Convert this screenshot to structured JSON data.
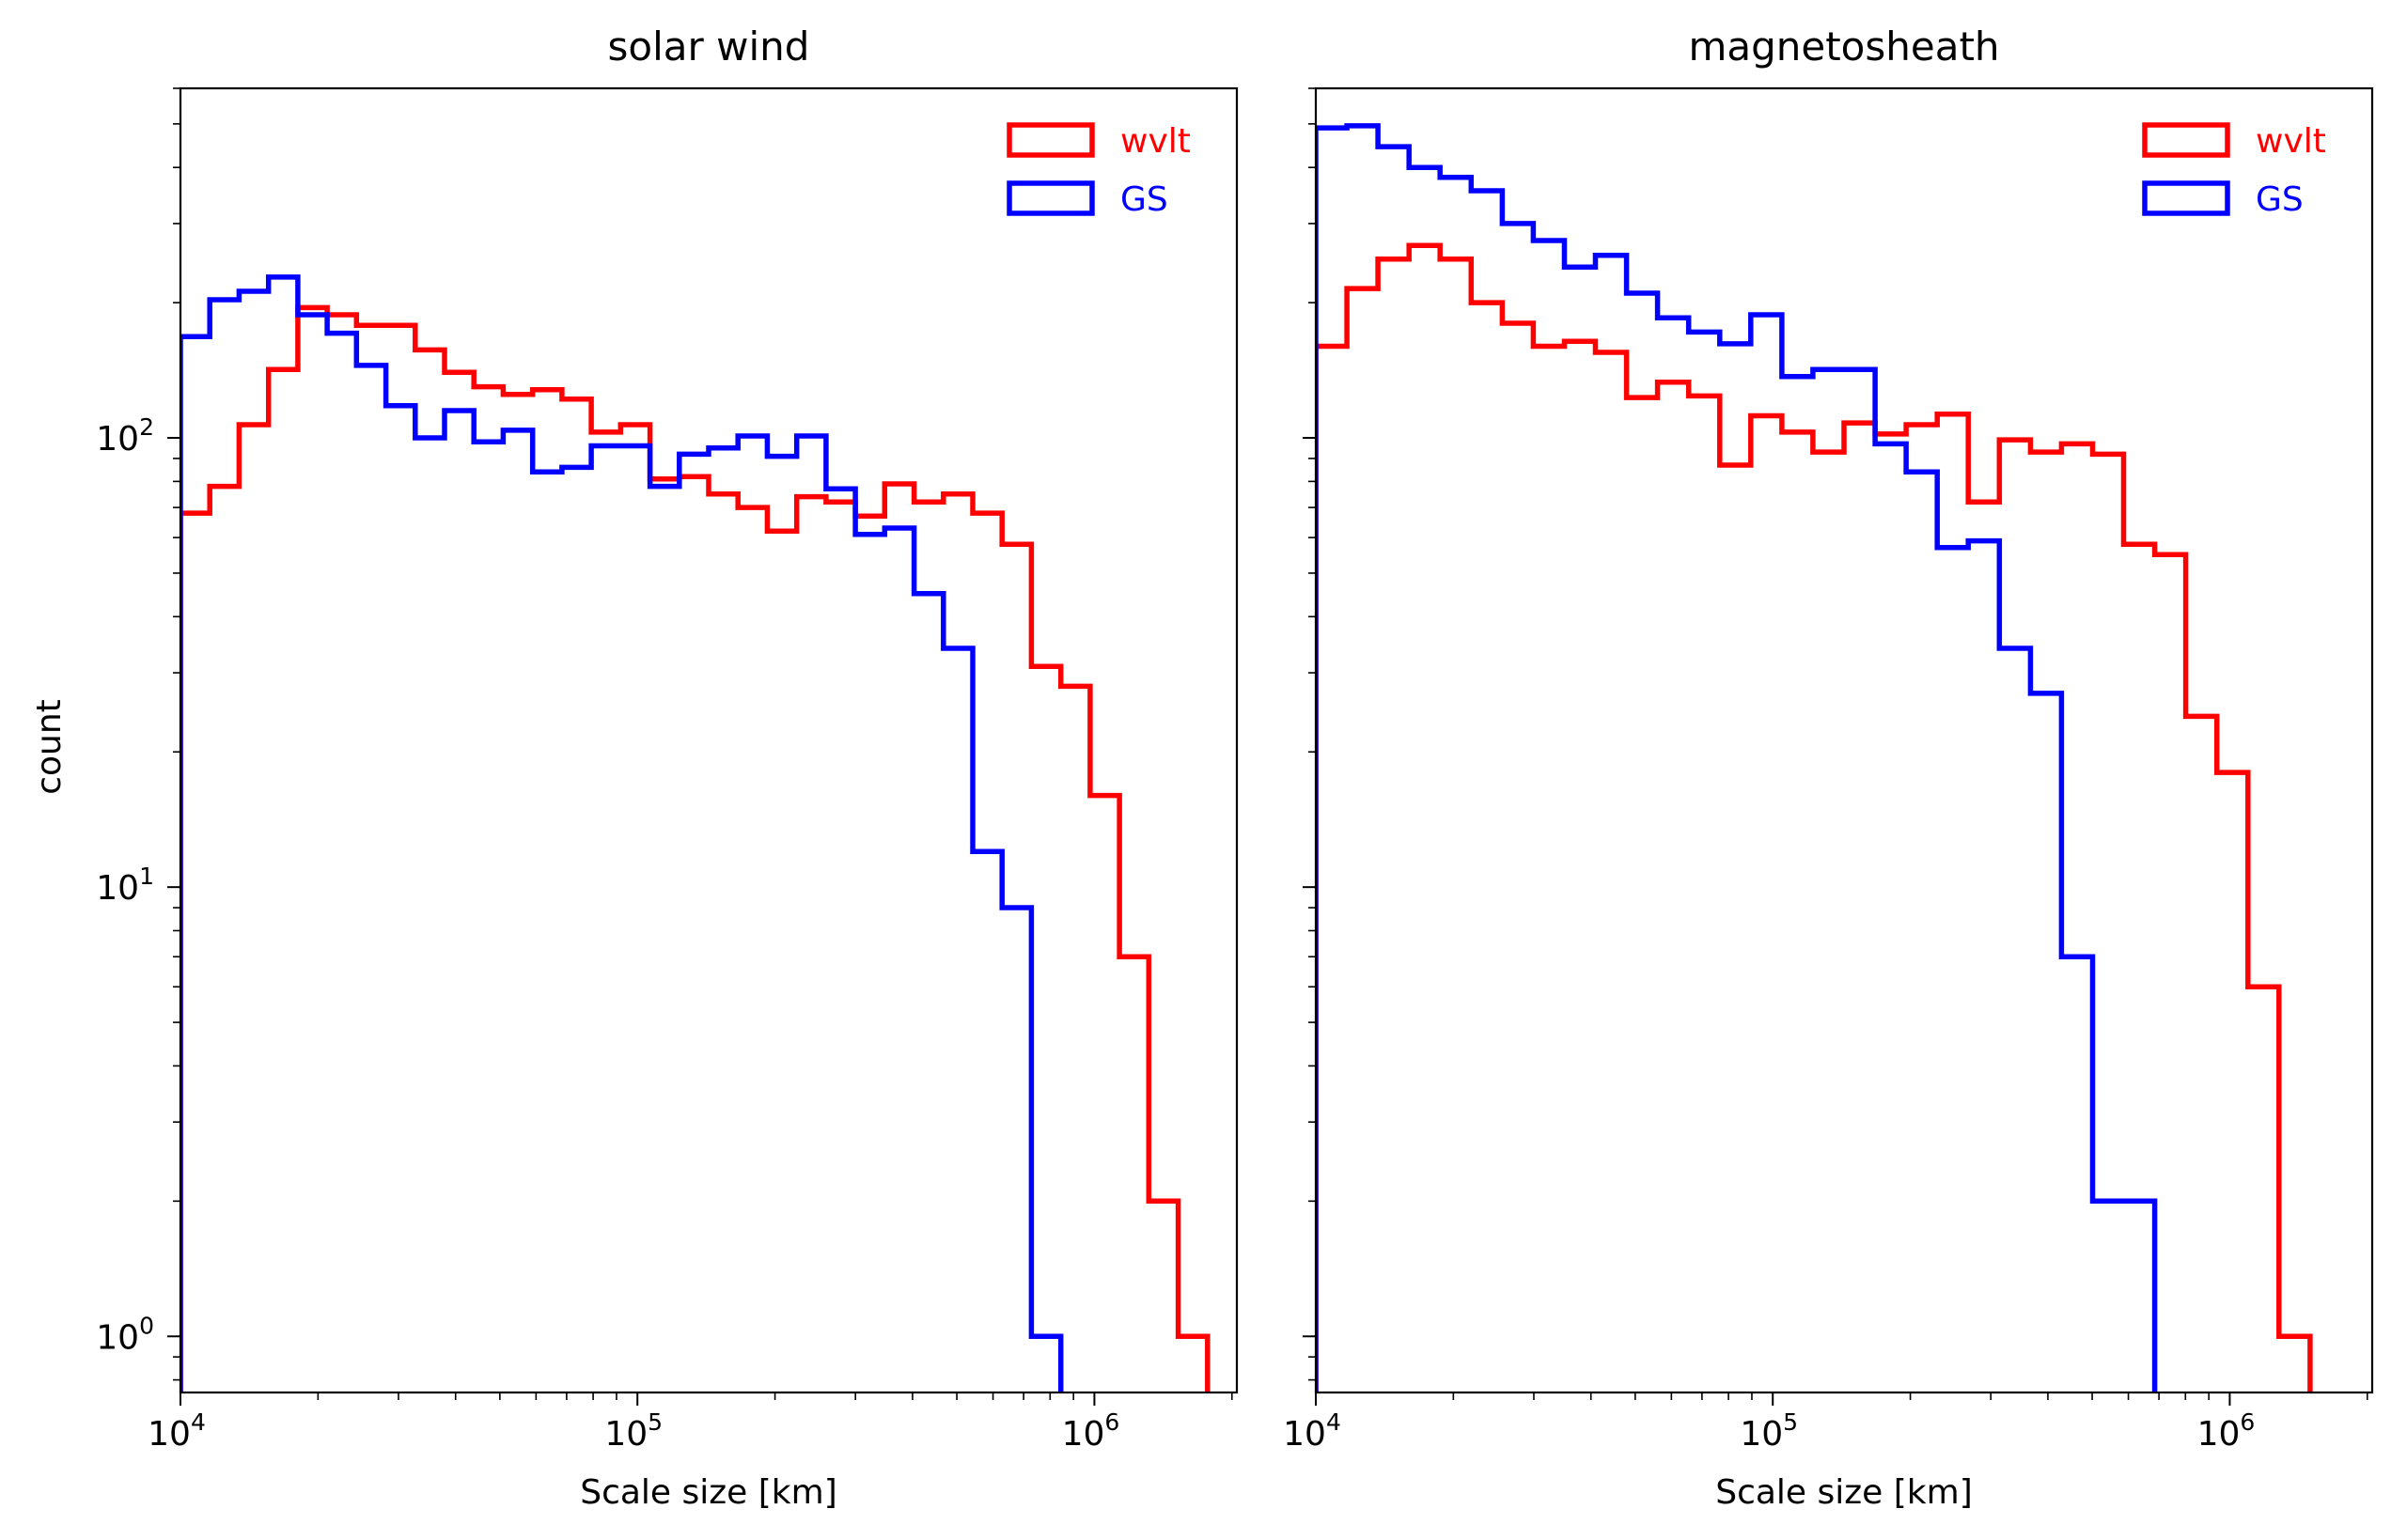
{
  "figure": {
    "ylabel": "count",
    "legend_placement": "top-right"
  },
  "chart_data": [
    {
      "type": "histogram-step",
      "title": "solar wind",
      "xlabel": "Scale size [km]",
      "ylabel": "count",
      "xscale": "log",
      "yscale": "log",
      "xlim": [
        10000,
        2050000
      ],
      "ylim": [
        0.75,
        600
      ],
      "xticks": [
        {
          "base": "10",
          "exp": "4",
          "value": 10000
        },
        {
          "base": "10",
          "exp": "5",
          "value": 100000
        },
        {
          "base": "10",
          "exp": "6",
          "value": 1000000
        }
      ],
      "yticks": [
        {
          "base": "10",
          "exp": "0",
          "value": 1
        },
        {
          "base": "10",
          "exp": "1",
          "value": 10
        },
        {
          "base": "10",
          "exp": "2",
          "value": 100
        }
      ],
      "legend": "top-right",
      "series": [
        {
          "name": "wvlt",
          "color": "#ff0000",
          "values": [
            68,
            78,
            107,
            142,
            195,
            188,
            178,
            178,
            157,
            140,
            130,
            125,
            128,
            122,
            103,
            107,
            81,
            82,
            75,
            70,
            62,
            74,
            72,
            67,
            79,
            72,
            75,
            68,
            58,
            31,
            28,
            16,
            7,
            2,
            1,
            0.7
          ]
        },
        {
          "name": "GS",
          "color": "#0000ff",
          "values": [
            168,
            203,
            212,
            228,
            188,
            171,
            145,
            118,
            100,
            115,
            98,
            104,
            84,
            86,
            96,
            96,
            78,
            92,
            95,
            101,
            91,
            101,
            77,
            61,
            63,
            45,
            34,
            12,
            9,
            1,
            0.7,
            0.7,
            0.7,
            0.7,
            0.7,
            0.7
          ]
        }
      ]
    },
    {
      "type": "histogram-step",
      "title": "magnetosheath",
      "xlabel": "Scale size [km]",
      "xscale": "log",
      "yscale": "log",
      "xlim": [
        10000,
        2050000
      ],
      "ylim": [
        0.75,
        600
      ],
      "xticks": [
        {
          "base": "10",
          "exp": "4",
          "value": 10000
        },
        {
          "base": "10",
          "exp": "5",
          "value": 100000
        },
        {
          "base": "10",
          "exp": "6",
          "value": 1000000
        }
      ],
      "legend": "top-right",
      "series": [
        {
          "name": "wvlt",
          "color": "#ff0000",
          "values": [
            160,
            215,
            250,
            268,
            250,
            200,
            180,
            160,
            164,
            155,
            123,
            133,
            124,
            87,
            112,
            103,
            93,
            108,
            102,
            107,
            113,
            72,
            99,
            93,
            97,
            92,
            58,
            55,
            24,
            18,
            6,
            1,
            0.7,
            0.7
          ]
        },
        {
          "name": "GS",
          "color": "#0000ff",
          "values": [
            490,
            495,
            445,
            400,
            380,
            355,
            300,
            275,
            240,
            255,
            210,
            185,
            172,
            162,
            188,
            137,
            142,
            142,
            97,
            84,
            57,
            59,
            34,
            27,
            7,
            2,
            2,
            0.7,
            0.7,
            0.7,
            0.7,
            0.7,
            0.7,
            0.7
          ]
        }
      ]
    }
  ],
  "legend_items": [
    {
      "label": "wvlt",
      "color": "#ff0000"
    },
    {
      "label": "GS",
      "color": "#0000ff"
    }
  ]
}
